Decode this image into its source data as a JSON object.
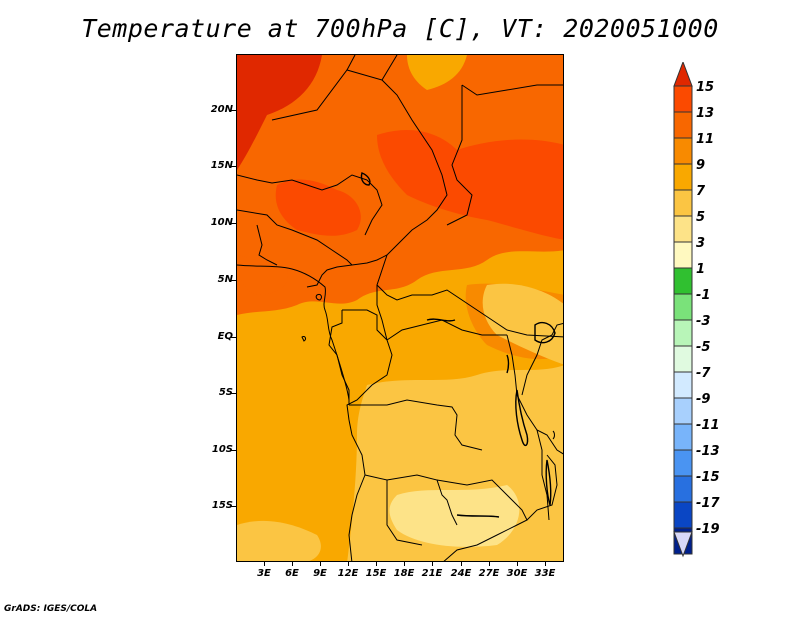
{
  "title": "Temperature at 700hPa [C], VT: 2020051000",
  "credit": "GrADS: IGES/COLA",
  "lat_labels": [
    "20N",
    "15N",
    "10N",
    "5N",
    "EQ",
    "5S",
    "10S",
    "15S"
  ],
  "lon_labels": [
    "3E",
    "6E",
    "9E",
    "12E",
    "15E",
    "18E",
    "21E",
    "24E",
    "27E",
    "30E",
    "33E"
  ],
  "colorbar": {
    "levels": [
      "15",
      "13",
      "11",
      "9",
      "7",
      "5",
      "3",
      "1",
      "-1",
      "-3",
      "-5",
      "-7",
      "-9",
      "-11",
      "-13",
      "-15",
      "-17",
      "-19"
    ],
    "colors": [
      "#fb4a00",
      "#f86700",
      "#f88a00",
      "#f9a800",
      "#fbc543",
      "#fde388",
      "#fff9c0",
      "#30c030",
      "#7ae27a",
      "#b8f5b8",
      "#e0fae0",
      "#d2eaff",
      "#a8d0fd",
      "#78b4fa",
      "#4a94f2",
      "#2870e0",
      "#0a46c4",
      "#00208c",
      "#000050"
    ]
  },
  "legend_colors": {
    "hot_top": "#e02800",
    "c13": "#fb4a00",
    "c11": "#f86700",
    "c9": "#f88a00",
    "c7": "#f9a800",
    "c5": "#fbc543",
    "c3": "#fde388"
  }
}
